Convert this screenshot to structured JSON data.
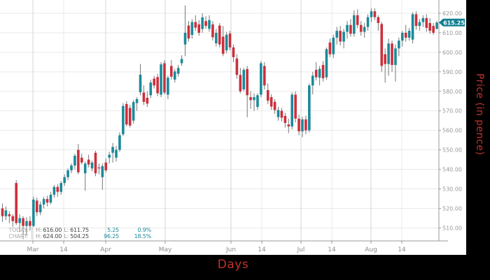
{
  "chart_data": {
    "type": "candlestick",
    "title": "",
    "xlabel": "Days",
    "ylabel": "Price (in pence)",
    "last_price": 615.25,
    "last_price_label": "615.25",
    "y_axis_range": [
      503,
      627
    ],
    "grid": true,
    "legend": "none",
    "y_ticks": [
      {
        "label": "620.00",
        "value": 620
      },
      {
        "label": "610.00",
        "value": 610
      },
      {
        "label": "600.00",
        "value": 600
      },
      {
        "label": "590.00",
        "value": 590
      },
      {
        "label": "580.00",
        "value": 580
      },
      {
        "label": "570.00",
        "value": 570
      },
      {
        "label": "560.00",
        "value": 560
      },
      {
        "label": "550.00",
        "value": 550
      },
      {
        "label": "540.00",
        "value": 540
      },
      {
        "label": "530.00",
        "value": 530
      },
      {
        "label": "520.00",
        "value": 520
      },
      {
        "label": "510.00",
        "value": 510
      }
    ],
    "x_ticks": [
      {
        "label": "Mar",
        "x": 47,
        "month": true
      },
      {
        "label": "14",
        "x": 91,
        "month": false
      },
      {
        "label": "Apr",
        "x": 151,
        "month": true
      },
      {
        "label": "May",
        "x": 236,
        "month": true
      },
      {
        "label": "Jun",
        "x": 330,
        "month": true
      },
      {
        "label": "14",
        "x": 374,
        "month": false
      },
      {
        "label": "Jul",
        "x": 430,
        "month": true
      },
      {
        "label": "14",
        "x": 474,
        "month": false
      },
      {
        "label": "Aug",
        "x": 530,
        "month": true
      },
      {
        "label": "14",
        "x": 574,
        "month": false
      }
    ],
    "colors": {
      "up": "#1a8a99",
      "down": "#cc2f3c",
      "wick": "#777777",
      "grid": "#e9e9e9",
      "grid_month": "#d4d4d4",
      "grid_mid": "#e8e8e8",
      "axis": "#999999",
      "tick_text": "#999999",
      "badge": "#127f90",
      "badge_text": "#ffffff",
      "title_red": "#c0322c"
    },
    "candles": [
      [
        520,
        522.5,
        513,
        516
      ],
      [
        516,
        521,
        514,
        519
      ],
      [
        517,
        518.5,
        512.5,
        516
      ],
      [
        516,
        517,
        510.5,
        513.5
      ],
      [
        533,
        534.5,
        511.5,
        512.5
      ],
      [
        512.5,
        517,
        508,
        515
      ],
      [
        515,
        516,
        504.25,
        511
      ],
      [
        511,
        515.5,
        506,
        513.5
      ],
      [
        513.5,
        516,
        508.5,
        511
      ],
      [
        511,
        526,
        510.5,
        524.5
      ],
      [
        524,
        525.5,
        516,
        518
      ],
      [
        518,
        523.5,
        516.5,
        522
      ],
      [
        522,
        526,
        520,
        524.8
      ],
      [
        524.8,
        526.5,
        521,
        523
      ],
      [
        523,
        528.5,
        522,
        527
      ],
      [
        527,
        532,
        525.5,
        531
      ],
      [
        531,
        532.5,
        526,
        528.5
      ],
      [
        528.5,
        534,
        527,
        533
      ],
      [
        533,
        537.5,
        531.5,
        536
      ],
      [
        536,
        540.5,
        534.5,
        539.5
      ],
      [
        539.5,
        543,
        538,
        542
      ],
      [
        542,
        548,
        540,
        547
      ],
      [
        550,
        553,
        537.5,
        538.5
      ],
      [
        546,
        548,
        542.5,
        543.5
      ],
      [
        538,
        544,
        529,
        543
      ],
      [
        545,
        547.5,
        541,
        542.5
      ],
      [
        540.5,
        544.5,
        539,
        543.5
      ],
      [
        548.5,
        549.5,
        536.5,
        538
      ],
      [
        541,
        543,
        537.5,
        540.5
      ],
      [
        536,
        543,
        529.5,
        541.7
      ],
      [
        543.5,
        545.5,
        538.5,
        539.5
      ],
      [
        546,
        549,
        543,
        547.5
      ],
      [
        548.5,
        553.5,
        543.5,
        551.5
      ],
      [
        546,
        552,
        544,
        550
      ],
      [
        550,
        559,
        549,
        557.5
      ],
      [
        558,
        574,
        557,
        572.5
      ],
      [
        573.5,
        575,
        562,
        563
      ],
      [
        571.5,
        573,
        561.5,
        562.5
      ],
      [
        565,
        575.5,
        563.5,
        574.5
      ],
      [
        574,
        577,
        570,
        576
      ],
      [
        579.5,
        594,
        578,
        588.5
      ],
      [
        579.4,
        583,
        573,
        574.6
      ],
      [
        576.7,
        580,
        572,
        573.7
      ],
      [
        578,
        586,
        576.5,
        584.5
      ],
      [
        586.5,
        588,
        581.5,
        583
      ],
      [
        587.3,
        589,
        577.5,
        579
      ],
      [
        578.3,
        595,
        577,
        593.8
      ],
      [
        594.4,
        596,
        578.5,
        579.4
      ],
      [
        578.3,
        588,
        576,
        587
      ],
      [
        593,
        596,
        586,
        587.5
      ],
      [
        586,
        591.5,
        584.5,
        590.2
      ],
      [
        589,
        593.5,
        587.5,
        592
      ],
      [
        594.4,
        598.5,
        593,
        596.6
      ],
      [
        604,
        624,
        598,
        610
      ],
      [
        613.7,
        616,
        605.5,
        607.1
      ],
      [
        608.9,
        617,
        607,
        615.5
      ],
      [
        615.5,
        619,
        611,
        612.6
      ],
      [
        614.3,
        616.5,
        608.5,
        610
      ],
      [
        611.9,
        620,
        610,
        617.9
      ],
      [
        616,
        618.5,
        612,
        613.5
      ],
      [
        612,
        619,
        610.5,
        616.5
      ],
      [
        614.3,
        616,
        606,
        607.7
      ],
      [
        604.6,
        612,
        603,
        610
      ],
      [
        613.7,
        615,
        602.5,
        604
      ],
      [
        608,
        613.5,
        598,
        599.2
      ],
      [
        601,
        610.5,
        599.5,
        609
      ],
      [
        609.6,
        611,
        601,
        602.5
      ],
      [
        602.5,
        604,
        595,
        597.5
      ],
      [
        596.8,
        599,
        586.5,
        588.4
      ],
      [
        588.4,
        592,
        579,
        580
      ],
      [
        581,
        592,
        580,
        591
      ],
      [
        591.4,
        593,
        566.7,
        578
      ],
      [
        577,
        580,
        571,
        575.5
      ],
      [
        575.5,
        579,
        570,
        577
      ],
      [
        572,
        579,
        570.5,
        578
      ],
      [
        578.3,
        595.5,
        577,
        594.4
      ],
      [
        593,
        595,
        581,
        583
      ],
      [
        580.6,
        584,
        573.5,
        575.2
      ],
      [
        577,
        578.5,
        570.5,
        572.2
      ],
      [
        574.6,
        576,
        568.5,
        570.4
      ],
      [
        566.8,
        572,
        565,
        570.4
      ],
      [
        570,
        571.5,
        564.5,
        566.5
      ],
      [
        567.4,
        569,
        561.5,
        563.8
      ],
      [
        563,
        566,
        558.5,
        562
      ],
      [
        562,
        579.5,
        560.5,
        578.3
      ],
      [
        578.3,
        580,
        564,
        566
      ],
      [
        566,
        568,
        557.5,
        559.5
      ],
      [
        559.5,
        567,
        556.5,
        565.6
      ],
      [
        565.6,
        567.5,
        558,
        560
      ],
      [
        560,
        584,
        559,
        583
      ],
      [
        583,
        590,
        578.5,
        588
      ],
      [
        591,
        595,
        585.5,
        587.2
      ],
      [
        587,
        593,
        583,
        591.5
      ],
      [
        593.5,
        595.5,
        585,
        586.7
      ],
      [
        587.2,
        602.5,
        586,
        601.6
      ],
      [
        605,
        607,
        597.5,
        599
      ],
      [
        599,
        609,
        597,
        607.5
      ],
      [
        607.5,
        613,
        604,
        611
      ],
      [
        611,
        613.5,
        603.5,
        605.5
      ],
      [
        605.5,
        612,
        602,
        610.5
      ],
      [
        610.5,
        616,
        607,
        614
      ],
      [
        614,
        617,
        608,
        609.5
      ],
      [
        609.5,
        621.5,
        608,
        619
      ],
      [
        619,
        622,
        612.5,
        614
      ],
      [
        614,
        616,
        608.5,
        610.5
      ],
      [
        610.5,
        615,
        607.5,
        613
      ],
      [
        613,
        619.5,
        611,
        618
      ],
      [
        618,
        622.5,
        615.5,
        621
      ],
      [
        621,
        622.5,
        616.5,
        618
      ],
      [
        618,
        619,
        611,
        615
      ],
      [
        614.5,
        615.5,
        590,
        593
      ],
      [
        599,
        602,
        584.5,
        594
      ],
      [
        594,
        607,
        588,
        604.5
      ],
      [
        604.5,
        606,
        590,
        593.5
      ],
      [
        593.5,
        604,
        585,
        602
      ],
      [
        602,
        607.5,
        598,
        606
      ],
      [
        606,
        611,
        603,
        610
      ],
      [
        610,
        614,
        605.5,
        607.5
      ],
      [
        607.5,
        612.5,
        606,
        611
      ],
      [
        606.5,
        620.5,
        604.5,
        619.5
      ],
      [
        619.5,
        621,
        611.5,
        613.5
      ],
      [
        613.5,
        617,
        611,
        615.5
      ],
      [
        615.5,
        619,
        613,
        617.5
      ],
      [
        617.5,
        619.5,
        610.5,
        612.5
      ],
      [
        615,
        617.5,
        609.5,
        611
      ],
      [
        613.5,
        615,
        609,
        610
      ],
      [
        612,
        616,
        611.75,
        615.25
      ]
    ]
  },
  "stats": {
    "today": {
      "label": "TODAY:",
      "h_label": "H:",
      "h": "616.00",
      "l_label": "L:",
      "l": "611.75",
      "change": "5.25",
      "change_pct": "0.9%"
    },
    "chart": {
      "label": "CHART:",
      "h_label": "H:",
      "h": "624.00",
      "l_label": "L:",
      "l": "504.25",
      "change": "96.25",
      "change_pct": "18.5%"
    }
  }
}
